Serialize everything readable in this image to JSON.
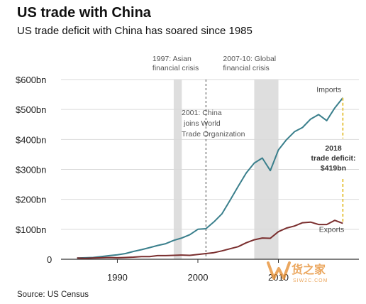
{
  "chart_data": {
    "type": "line",
    "title": "US trade with China",
    "subtitle": "US trade deficit with China has soared since 1985",
    "source": "Source: US Census",
    "xlim": [
      1983,
      2020
    ],
    "ylim": [
      0,
      600
    ],
    "x_ticks": [
      1990,
      2000,
      2010
    ],
    "y_ticks": [
      {
        "value": 0,
        "label": "0"
      },
      {
        "value": 100,
        "label": "$100bn"
      },
      {
        "value": 200,
        "label": "$200bn"
      },
      {
        "value": 300,
        "label": "$300bn"
      },
      {
        "value": 400,
        "label": "$400bn"
      },
      {
        "value": 500,
        "label": "$500bn"
      },
      {
        "value": 600,
        "label": "$600bn"
      }
    ],
    "grid": "horizontal",
    "series": [
      {
        "name": "Imports",
        "color": "#3a7f8c",
        "x": [
          1985,
          1986,
          1987,
          1988,
          1989,
          1990,
          1991,
          1992,
          1993,
          1994,
          1995,
          1996,
          1997,
          1998,
          1999,
          2000,
          2001,
          2002,
          2003,
          2004,
          2005,
          2006,
          2007,
          2008,
          2009,
          2010,
          2011,
          2012,
          2013,
          2014,
          2015,
          2016,
          2017,
          2018
        ],
        "y": [
          4,
          5,
          6,
          9,
          12,
          15,
          19,
          26,
          32,
          39,
          46,
          52,
          63,
          71,
          82,
          100,
          102,
          125,
          152,
          197,
          243,
          288,
          321,
          338,
          296,
          365,
          399,
          426,
          440,
          468,
          483,
          463,
          505,
          539
        ]
      },
      {
        "name": "Exports",
        "color": "#7a2e2e",
        "x": [
          1985,
          1986,
          1987,
          1988,
          1989,
          1990,
          1991,
          1992,
          1993,
          1994,
          1995,
          1996,
          1997,
          1998,
          1999,
          2000,
          2001,
          2002,
          2003,
          2004,
          2005,
          2006,
          2007,
          2008,
          2009,
          2010,
          2011,
          2012,
          2013,
          2014,
          2015,
          2016,
          2017,
          2018
        ],
        "y": [
          4,
          3,
          4,
          5,
          6,
          5,
          6,
          7,
          9,
          9,
          12,
          12,
          13,
          14,
          13,
          16,
          19,
          22,
          28,
          35,
          42,
          55,
          65,
          71,
          70,
          92,
          104,
          111,
          122,
          124,
          116,
          116,
          130,
          120
        ]
      }
    ],
    "shaded_periods": [
      {
        "from": 1997,
        "to": 1998,
        "label": [
          "1997: Asian",
          "financial crisis"
        ]
      },
      {
        "from": 2007,
        "to": 2010,
        "label": [
          "2007-10: Global",
          "financial crisis"
        ]
      }
    ],
    "event_lines": [
      {
        "x": 2001,
        "label": [
          "2001: China",
          "joins World",
          "Trade Organization"
        ]
      }
    ],
    "deficit_callout": {
      "x": 2018,
      "lines": [
        "2018",
        "trade deficit:",
        "$419bn"
      ],
      "color": "#e8c64a"
    }
  },
  "watermark": {
    "text": "货之家",
    "url": "SIW2C.COM",
    "color": "#e58a2a"
  }
}
